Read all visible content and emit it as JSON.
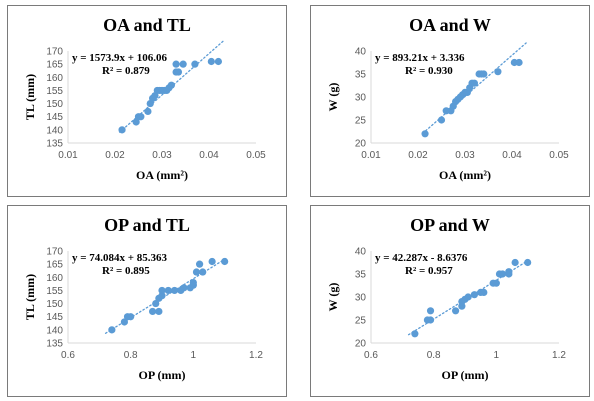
{
  "chart_data": [
    {
      "type": "scatter",
      "title": "OA and TL",
      "xlabel": "OA (mm²)",
      "ylabel": "TL (mm)",
      "xlim": [
        0.01,
        0.05
      ],
      "ylim": [
        135,
        170
      ],
      "xticks": [
        "0.01",
        "0.02",
        "0.03",
        "0.04",
        "0.05"
      ],
      "yticks": [
        "135",
        "140",
        "145",
        "150",
        "155",
        "160",
        "165",
        "170"
      ],
      "equation": "y = 1573.9x + 106.06",
      "r2": "R² = 0.879",
      "trendline": {
        "slope": 1573.9,
        "intercept": 106.06,
        "x_range": [
          0.021,
          0.043
        ]
      },
      "points": [
        {
          "x": 0.0215,
          "y": 140
        },
        {
          "x": 0.0245,
          "y": 143
        },
        {
          "x": 0.025,
          "y": 145
        },
        {
          "x": 0.0255,
          "y": 145
        },
        {
          "x": 0.027,
          "y": 147
        },
        {
          "x": 0.0275,
          "y": 150
        },
        {
          "x": 0.028,
          "y": 152
        },
        {
          "x": 0.0285,
          "y": 153
        },
        {
          "x": 0.029,
          "y": 155
        },
        {
          "x": 0.0295,
          "y": 155
        },
        {
          "x": 0.03,
          "y": 155
        },
        {
          "x": 0.0305,
          "y": 155
        },
        {
          "x": 0.031,
          "y": 155
        },
        {
          "x": 0.0315,
          "y": 156
        },
        {
          "x": 0.032,
          "y": 157
        },
        {
          "x": 0.033,
          "y": 162
        },
        {
          "x": 0.0335,
          "y": 162
        },
        {
          "x": 0.033,
          "y": 165
        },
        {
          "x": 0.0345,
          "y": 165
        },
        {
          "x": 0.037,
          "y": 165
        },
        {
          "x": 0.0405,
          "y": 166
        },
        {
          "x": 0.042,
          "y": 166
        }
      ]
    },
    {
      "type": "scatter",
      "title": "OA and W",
      "xlabel": "OA (mm²)",
      "ylabel": "W (g)",
      "xlim": [
        0.01,
        0.05
      ],
      "ylim": [
        20,
        40
      ],
      "xticks": [
        "0.01",
        "0.02",
        "0.03",
        "0.04",
        "0.05"
      ],
      "yticks": [
        "20",
        "25",
        "30",
        "35",
        "40"
      ],
      "equation": "y = 893.21x + 3.336",
      "r2": "R² = 0.930",
      "trendline": {
        "slope": 893.21,
        "intercept": 3.336,
        "x_range": [
          0.021,
          0.043
        ]
      },
      "points": [
        {
          "x": 0.0215,
          "y": 22
        },
        {
          "x": 0.025,
          "y": 25
        },
        {
          "x": 0.026,
          "y": 27
        },
        {
          "x": 0.027,
          "y": 27
        },
        {
          "x": 0.0275,
          "y": 28
        },
        {
          "x": 0.028,
          "y": 29
        },
        {
          "x": 0.0285,
          "y": 29.5
        },
        {
          "x": 0.029,
          "y": 30
        },
        {
          "x": 0.0295,
          "y": 30.5
        },
        {
          "x": 0.03,
          "y": 31
        },
        {
          "x": 0.0305,
          "y": 31
        },
        {
          "x": 0.031,
          "y": 32
        },
        {
          "x": 0.0315,
          "y": 33
        },
        {
          "x": 0.032,
          "y": 33
        },
        {
          "x": 0.033,
          "y": 35
        },
        {
          "x": 0.0335,
          "y": 35
        },
        {
          "x": 0.034,
          "y": 35
        },
        {
          "x": 0.037,
          "y": 35.5
        },
        {
          "x": 0.0405,
          "y": 37.5
        },
        {
          "x": 0.0415,
          "y": 37.5
        }
      ]
    },
    {
      "type": "scatter",
      "title": "OP and TL",
      "xlabel": "OP (mm)",
      "ylabel": "TL (mm)",
      "xlim": [
        0.6,
        1.2
      ],
      "ylim": [
        135,
        170
      ],
      "xticks": [
        "0.6",
        "0.8",
        "1",
        "1.2"
      ],
      "yticks": [
        "135",
        "140",
        "145",
        "150",
        "155",
        "160",
        "165",
        "170"
      ],
      "equation": "y = 74.084x + 85.363",
      "r2": "R² = 0.895",
      "trendline": {
        "slope": 74.084,
        "intercept": 85.363,
        "x_range": [
          0.72,
          1.11
        ]
      },
      "points": [
        {
          "x": 0.74,
          "y": 140
        },
        {
          "x": 0.78,
          "y": 143
        },
        {
          "x": 0.79,
          "y": 145
        },
        {
          "x": 0.8,
          "y": 145
        },
        {
          "x": 0.87,
          "y": 147
        },
        {
          "x": 0.89,
          "y": 147
        },
        {
          "x": 0.88,
          "y": 150
        },
        {
          "x": 0.89,
          "y": 152
        },
        {
          "x": 0.9,
          "y": 153
        },
        {
          "x": 0.9,
          "y": 155
        },
        {
          "x": 0.92,
          "y": 155
        },
        {
          "x": 0.94,
          "y": 155
        },
        {
          "x": 0.96,
          "y": 155
        },
        {
          "x": 0.97,
          "y": 156
        },
        {
          "x": 0.99,
          "y": 156
        },
        {
          "x": 1.0,
          "y": 157
        },
        {
          "x": 1.0,
          "y": 158
        },
        {
          "x": 1.01,
          "y": 162
        },
        {
          "x": 1.03,
          "y": 162
        },
        {
          "x": 1.02,
          "y": 165
        },
        {
          "x": 1.06,
          "y": 166
        },
        {
          "x": 1.1,
          "y": 166
        }
      ]
    },
    {
      "type": "scatter",
      "title": "OP and W",
      "xlabel": "OP (mm)",
      "ylabel": "W (g)",
      "xlim": [
        0.6,
        1.2
      ],
      "ylim": [
        20,
        40
      ],
      "xticks": [
        "0.6",
        "0.8",
        "1",
        "1.2"
      ],
      "yticks": [
        "20",
        "25",
        "30",
        "35",
        "40"
      ],
      "equation": "y = 42.287x - 8.6376",
      "r2": "R² = 0.957",
      "trendline": {
        "slope": 42.287,
        "intercept": -8.6376,
        "x_range": [
          0.72,
          1.11
        ]
      },
      "points": [
        {
          "x": 0.74,
          "y": 22
        },
        {
          "x": 0.78,
          "y": 25
        },
        {
          "x": 0.79,
          "y": 25
        },
        {
          "x": 0.79,
          "y": 27
        },
        {
          "x": 0.87,
          "y": 27
        },
        {
          "x": 0.89,
          "y": 28
        },
        {
          "x": 0.89,
          "y": 29
        },
        {
          "x": 0.9,
          "y": 29.5
        },
        {
          "x": 0.91,
          "y": 30
        },
        {
          "x": 0.93,
          "y": 30.5
        },
        {
          "x": 0.95,
          "y": 31
        },
        {
          "x": 0.96,
          "y": 31
        },
        {
          "x": 0.99,
          "y": 33
        },
        {
          "x": 1.0,
          "y": 33
        },
        {
          "x": 1.01,
          "y": 35
        },
        {
          "x": 1.02,
          "y": 35
        },
        {
          "x": 1.04,
          "y": 35
        },
        {
          "x": 1.04,
          "y": 35.5
        },
        {
          "x": 1.06,
          "y": 37.5
        },
        {
          "x": 1.1,
          "y": 37.5
        }
      ]
    }
  ],
  "colors": {
    "marker": "#5b9bd5",
    "axis": "#d9d9d9",
    "tick_text": "#595959",
    "border": "#7a7a7a"
  }
}
